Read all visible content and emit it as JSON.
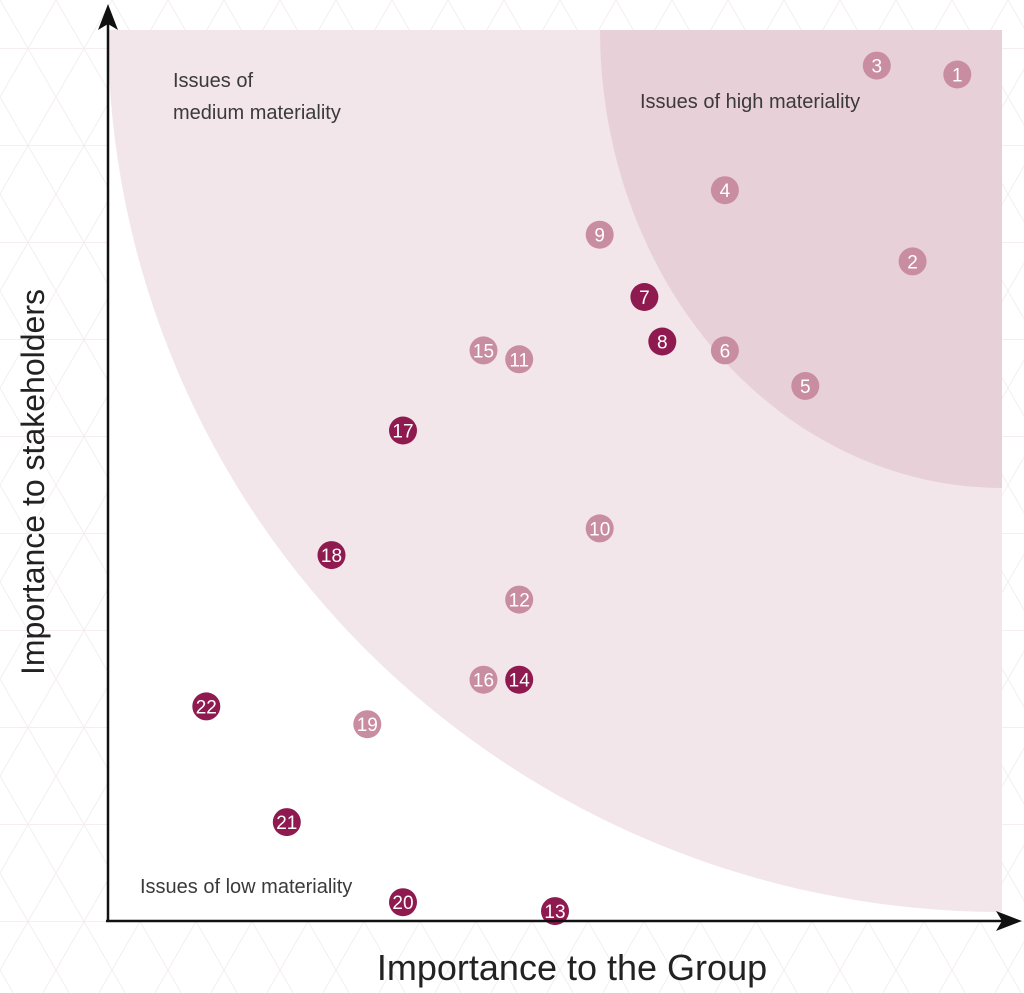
{
  "chart_data": {
    "type": "scatter",
    "title": "",
    "xlabel": "Importance to the Group",
    "ylabel": "Importance to stakeholders",
    "xlim": [
      0,
      100
    ],
    "ylim": [
      0,
      100
    ],
    "grid": false,
    "zones": [
      {
        "id": "low",
        "label": "Issues of low materiality",
        "color": "#ffffff"
      },
      {
        "id": "medium",
        "label": "Issues of medium materiality",
        "color": "#f2e6ea"
      },
      {
        "id": "high",
        "label": "Issues of high materiality",
        "color": "#e8d0d8"
      }
    ],
    "series": [
      {
        "category": "light",
        "color": "#c98da1",
        "points": [
          {
            "label": "1",
            "x": 95,
            "y": 95
          },
          {
            "label": "2",
            "x": 90,
            "y": 74
          },
          {
            "label": "3",
            "x": 86,
            "y": 96
          },
          {
            "label": "4",
            "x": 69,
            "y": 82
          },
          {
            "label": "5",
            "x": 78,
            "y": 60
          },
          {
            "label": "6",
            "x": 69,
            "y": 64
          },
          {
            "label": "9",
            "x": 55,
            "y": 77
          },
          {
            "label": "10",
            "x": 55,
            "y": 44
          },
          {
            "label": "11",
            "x": 46,
            "y": 63
          },
          {
            "label": "12",
            "x": 46,
            "y": 36
          },
          {
            "label": "15",
            "x": 42,
            "y": 64
          },
          {
            "label": "16",
            "x": 42,
            "y": 27
          },
          {
            "label": "19",
            "x": 29,
            "y": 22
          }
        ]
      },
      {
        "category": "dark",
        "color": "#8e1a4f",
        "points": [
          {
            "label": "7",
            "x": 60,
            "y": 70
          },
          {
            "label": "8",
            "x": 62,
            "y": 65
          },
          {
            "label": "13",
            "x": 50,
            "y": 1
          },
          {
            "label": "14",
            "x": 46,
            "y": 27
          },
          {
            "label": "17",
            "x": 33,
            "y": 55
          },
          {
            "label": "18",
            "x": 25,
            "y": 41
          },
          {
            "label": "20",
            "x": 33,
            "y": 2
          },
          {
            "label": "21",
            "x": 20,
            "y": 11
          },
          {
            "label": "22",
            "x": 11,
            "y": 24
          }
        ]
      }
    ]
  }
}
